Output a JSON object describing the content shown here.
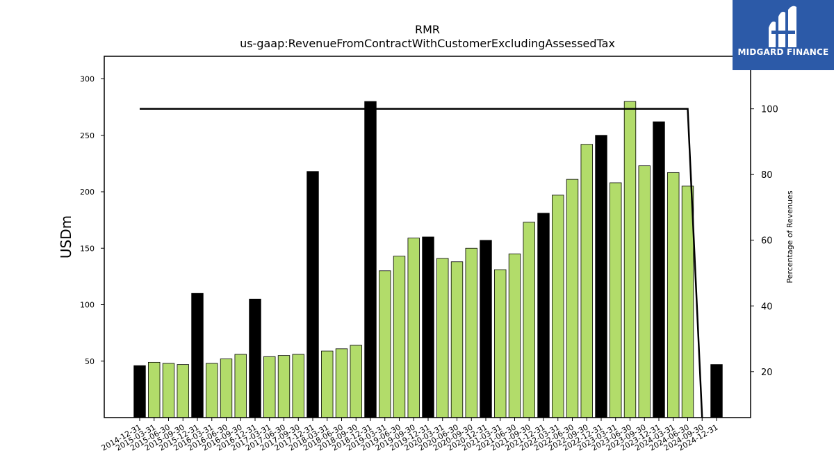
{
  "chart_data": {
    "type": "bar",
    "title": "RMR",
    "subtitle": "us-gaap:RevenueFromContractWithCustomerExcludingAssessedTax",
    "ylabel": "USDm",
    "y2label": "Percentage of Revenues",
    "ylim": [
      0,
      320
    ],
    "y2lim": [
      6,
      116
    ],
    "yticks": [
      50,
      100,
      150,
      200,
      250,
      300
    ],
    "y2ticks": [
      20,
      40,
      60,
      80,
      100
    ],
    "categories": [
      "2014-12-31",
      "2015-03-31",
      "2015-06-30",
      "2015-09-30",
      "2015-12-31",
      "2016-03-31",
      "2016-06-30",
      "2016-09-30",
      "2016-12-31",
      "2017-03-31",
      "2017-06-30",
      "2017-09-30",
      "2017-12-31",
      "2018-03-31",
      "2018-06-30",
      "2018-09-30",
      "2018-12-31",
      "2019-03-31",
      "2019-06-30",
      "2019-09-30",
      "2019-12-31",
      "2020-03-31",
      "2020-06-30",
      "2020-09-30",
      "2020-12-31",
      "2021-03-31",
      "2021-06-30",
      "2021-09-30",
      "2021-12-31",
      "2022-03-31",
      "2022-06-30",
      "2022-09-30",
      "2022-12-31",
      "2023-03-31",
      "2023-06-30",
      "2023-09-30",
      "2023-12-31",
      "2024-03-31",
      "2024-06-30",
      "2024-09-30",
      "2024-12-31"
    ],
    "series": [
      {
        "type": "bar",
        "values": [
          46,
          49,
          48,
          47,
          110,
          48,
          52,
          56,
          105,
          54,
          55,
          56,
          218,
          59,
          61,
          64,
          280,
          130,
          143,
          159,
          160,
          141,
          138,
          150,
          157,
          131,
          145,
          173,
          181,
          197,
          211,
          242,
          250,
          208,
          280,
          223,
          262,
          217,
          205,
          null,
          47
        ],
        "highlight": [
          true,
          false,
          false,
          false,
          true,
          false,
          false,
          false,
          true,
          false,
          false,
          false,
          true,
          false,
          false,
          false,
          true,
          false,
          false,
          false,
          true,
          false,
          false,
          false,
          true,
          false,
          false,
          false,
          true,
          false,
          false,
          false,
          true,
          false,
          false,
          false,
          true,
          false,
          false,
          false,
          true
        ]
      },
      {
        "type": "line",
        "axis": "right",
        "values": [
          100,
          100,
          100,
          100,
          100,
          100,
          100,
          100,
          100,
          100,
          100,
          100,
          100,
          100,
          100,
          100,
          100,
          100,
          100,
          100,
          100,
          100,
          100,
          100,
          100,
          100,
          100,
          100,
          100,
          100,
          100,
          100,
          100,
          100,
          100,
          100,
          100,
          100,
          100,
          6,
          null
        ]
      }
    ],
    "colors": {
      "bar": "#b2dc6a",
      "highlight": "#000000",
      "line": "#000000",
      "edge": "#000000"
    },
    "grid": false,
    "legend": "none"
  },
  "logo": {
    "text": "MIDGARD FINANCE"
  }
}
